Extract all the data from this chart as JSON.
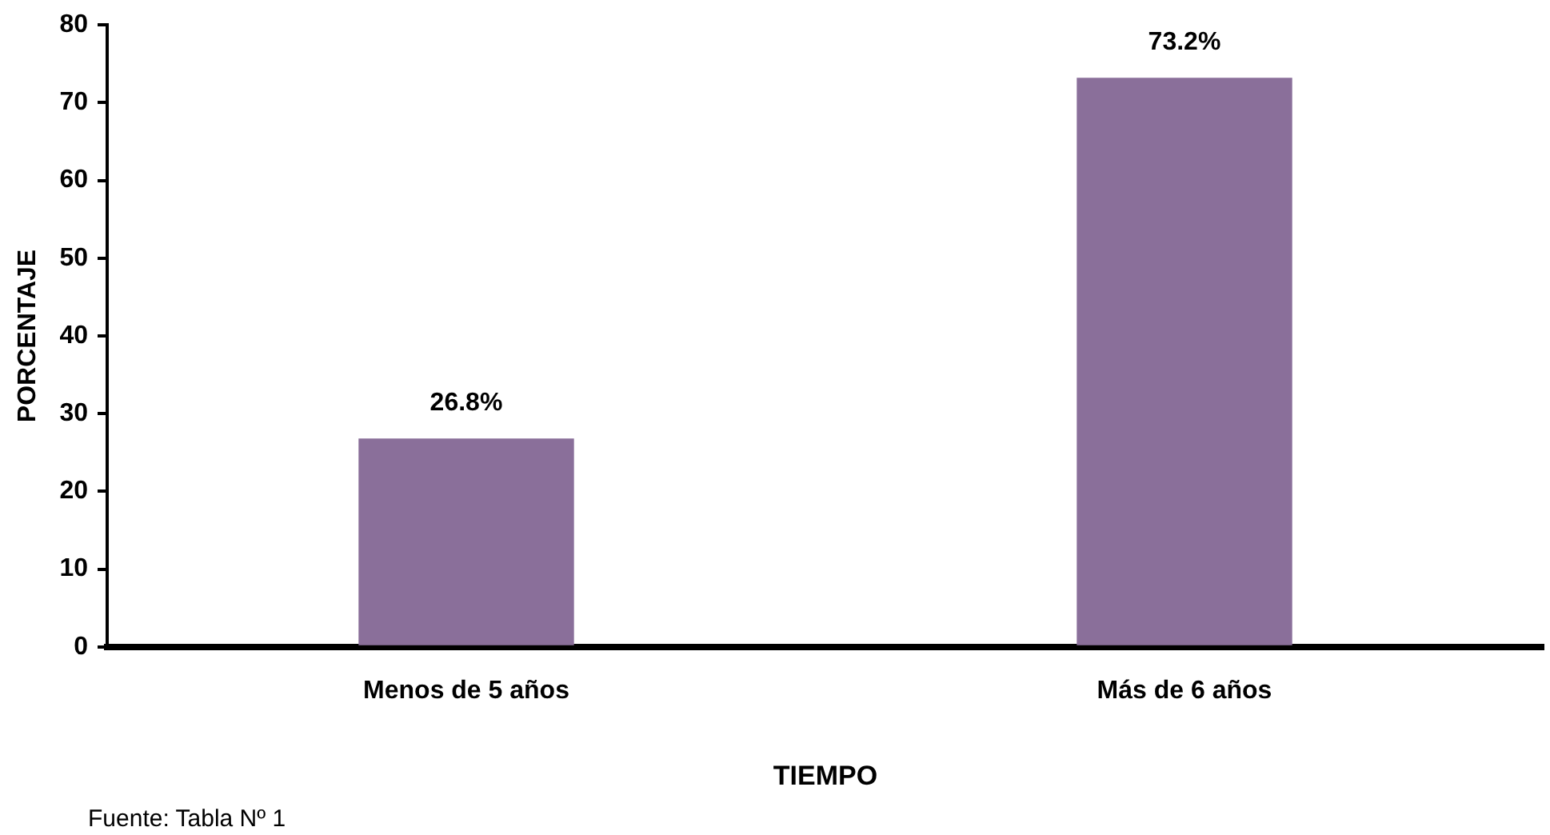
{
  "chart_data": {
    "type": "bar",
    "categories": [
      "Menos de 5 años",
      "Más de 6 años"
    ],
    "values": [
      26.8,
      73.2
    ],
    "value_labels": [
      "26.8%",
      "73.2%"
    ],
    "color": "#8a6f9a",
    "xlabel": "TIEMPO",
    "ylabel": "PORCENTAJE",
    "ylim": [
      0,
      80
    ],
    "yticks": [
      0,
      10,
      20,
      30,
      40,
      50,
      60,
      70,
      80
    ],
    "grid": false,
    "legend": false,
    "annotations": [
      "Fuente: Tabla Nº 1"
    ]
  }
}
